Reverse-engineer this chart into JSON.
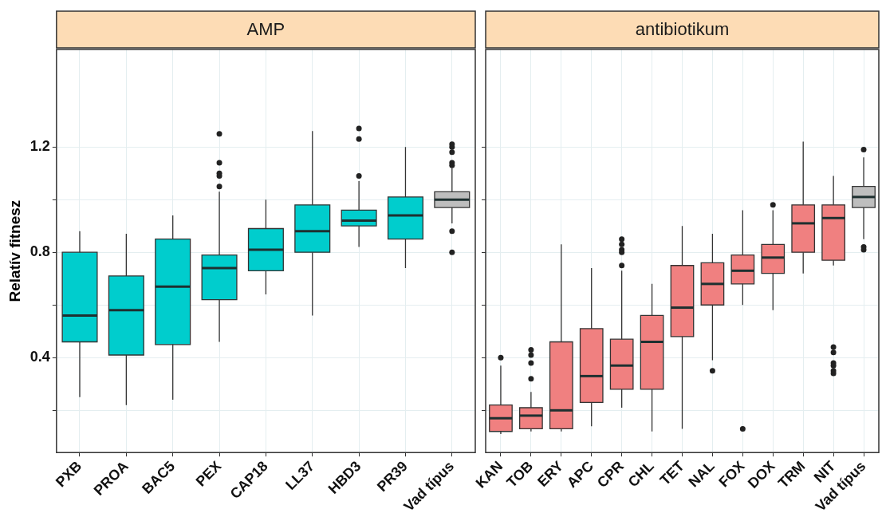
{
  "chart_data": [
    {
      "type": "box",
      "title": "AMP",
      "ylabel": "Relatív fitnesz",
      "categories": [
        "PXB",
        "PROA",
        "BAC5",
        "PEX",
        "CAP18",
        "LL37",
        "HBD3",
        "PR39",
        "Vad típus"
      ],
      "colors": [
        "#00cdcd",
        "#00cdcd",
        "#00cdcd",
        "#00cdcd",
        "#00cdcd",
        "#00cdcd",
        "#00cdcd",
        "#00cdcd",
        "#bebebe"
      ],
      "boxes": [
        {
          "low": 0.25,
          "q1": 0.46,
          "median": 0.56,
          "q3": 0.8,
          "high": 0.88
        },
        {
          "low": 0.22,
          "q1": 0.41,
          "median": 0.58,
          "q3": 0.71,
          "high": 0.87
        },
        {
          "low": 0.24,
          "q1": 0.45,
          "median": 0.67,
          "q3": 0.85,
          "high": 0.94
        },
        {
          "low": 0.46,
          "q1": 0.62,
          "median": 0.74,
          "q3": 0.79,
          "high": 1.03,
          "outliers": [
            1.25,
            1.14,
            1.1,
            1.09,
            1.05
          ]
        },
        {
          "low": 0.64,
          "q1": 0.73,
          "median": 0.81,
          "q3": 0.89,
          "high": 1.0
        },
        {
          "low": 0.56,
          "q1": 0.8,
          "median": 0.88,
          "q3": 0.98,
          "high": 1.26
        },
        {
          "low": 0.82,
          "q1": 0.9,
          "median": 0.92,
          "q3": 0.96,
          "high": 1.07,
          "outliers": [
            1.27,
            1.23,
            1.09
          ]
        },
        {
          "low": 0.74,
          "q1": 0.85,
          "median": 0.94,
          "q3": 1.01,
          "high": 1.2
        },
        {
          "low": 0.91,
          "q1": 0.97,
          "median": 1.0,
          "q3": 1.03,
          "high": 1.12,
          "outliers": [
            1.21,
            1.2,
            1.18,
            1.14,
            1.13,
            0.88,
            0.8
          ]
        }
      ],
      "ylim": [
        0.04,
        1.57
      ],
      "yticks": [
        {
          "value": 0.2,
          "label": null
        },
        0.4,
        {
          "value": 0.6,
          "label": null
        },
        0.8,
        {
          "value": 1,
          "label": null
        },
        1.2
      ],
      "grid": true,
      "legend": false
    },
    {
      "type": "box",
      "title": "antibiotikum",
      "categories": [
        "KAN",
        "TOB",
        "ERY",
        "APC",
        "CPR",
        "CHL",
        "TET",
        "NAL",
        "FOX",
        "DOX",
        "TRM",
        "NIT",
        "Vad típus"
      ],
      "colors": [
        "#f08080",
        "#f08080",
        "#f08080",
        "#f08080",
        "#f08080",
        "#f08080",
        "#f08080",
        "#f08080",
        "#f08080",
        "#f08080",
        "#f08080",
        "#f08080",
        "#bebebe"
      ],
      "boxes": [
        {
          "low": 0.11,
          "q1": 0.12,
          "median": 0.17,
          "q3": 0.22,
          "high": 0.37,
          "outliers": [
            0.4
          ]
        },
        {
          "low": 0.12,
          "q1": 0.13,
          "median": 0.18,
          "q3": 0.21,
          "high": 0.27,
          "outliers": [
            0.43,
            0.41,
            0.38,
            0.32
          ]
        },
        {
          "low": 0.12,
          "q1": 0.13,
          "median": 0.2,
          "q3": 0.46,
          "high": 0.83
        },
        {
          "low": 0.14,
          "q1": 0.23,
          "median": 0.33,
          "q3": 0.51,
          "high": 0.74
        },
        {
          "low": 0.21,
          "q1": 0.28,
          "median": 0.37,
          "q3": 0.47,
          "high": 0.73,
          "outliers": [
            0.85,
            0.83,
            0.81,
            0.8,
            0.75
          ]
        },
        {
          "low": 0.12,
          "q1": 0.28,
          "median": 0.46,
          "q3": 0.56,
          "high": 0.68
        },
        {
          "low": 0.13,
          "q1": 0.48,
          "median": 0.59,
          "q3": 0.75,
          "high": 0.9
        },
        {
          "low": 0.39,
          "q1": 0.6,
          "median": 0.68,
          "q3": 0.76,
          "high": 0.87,
          "outliers": [
            0.35
          ]
        },
        {
          "low": 0.6,
          "q1": 0.68,
          "median": 0.73,
          "q3": 0.79,
          "high": 0.96,
          "outliers": [
            0.13
          ]
        },
        {
          "low": 0.58,
          "q1": 0.72,
          "median": 0.78,
          "q3": 0.83,
          "high": 0.96,
          "outliers": [
            0.98
          ]
        },
        {
          "low": 0.72,
          "q1": 0.8,
          "median": 0.91,
          "q3": 0.98,
          "high": 1.22
        },
        {
          "low": 0.75,
          "q1": 0.77,
          "median": 0.93,
          "q3": 0.98,
          "high": 1.09,
          "outliers": [
            0.44,
            0.42,
            0.38,
            0.37,
            0.35,
            0.34
          ]
        },
        {
          "low": 0.85,
          "q1": 0.97,
          "median": 1.01,
          "q3": 1.05,
          "high": 1.16,
          "outliers": [
            1.19,
            0.82,
            0.81
          ]
        }
      ],
      "ylim": [
        0.04,
        1.57
      ],
      "yticks": [
        {
          "value": 0.2,
          "label": null
        },
        0.4,
        {
          "value": 0.6,
          "label": null
        },
        0.8,
        {
          "value": 1,
          "label": null
        },
        1.2
      ],
      "tick_labels": "x",
      "grid": true,
      "legend": false
    }
  ]
}
